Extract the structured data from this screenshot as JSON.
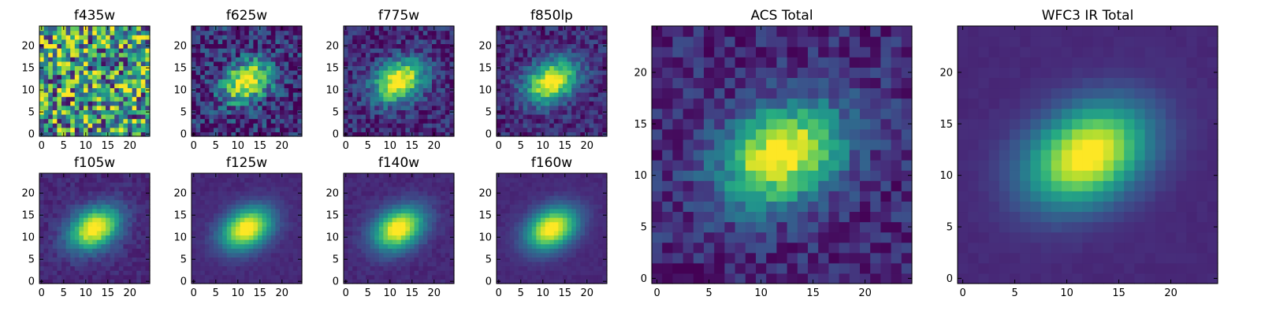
{
  "chart_data": [
    {
      "type": "heatmap",
      "title": "f435w",
      "colormap": "viridis",
      "xlim": [
        0,
        24
      ],
      "ylim": [
        0,
        24
      ],
      "x_ticks": [
        "0",
        "5",
        "10",
        "15",
        "20"
      ],
      "y_ticks": [
        "0",
        "5",
        "10",
        "15",
        "20"
      ],
      "source_center": [
        12,
        12
      ],
      "peak_relative_to_noise": 0.0,
      "noise_level": 0.85,
      "noise_seed": 11
    },
    {
      "type": "heatmap",
      "title": "f625w",
      "colormap": "viridis",
      "xlim": [
        0,
        24
      ],
      "ylim": [
        0,
        24
      ],
      "x_ticks": [
        "0",
        "5",
        "10",
        "15",
        "20"
      ],
      "y_ticks": [
        "0",
        "5",
        "10",
        "15",
        "20"
      ],
      "source_center": [
        12,
        12
      ],
      "peak_relative_to_noise": 1.0,
      "noise_level": 0.55,
      "noise_seed": 23
    },
    {
      "type": "heatmap",
      "title": "f775w",
      "colormap": "viridis",
      "xlim": [
        0,
        24
      ],
      "ylim": [
        0,
        24
      ],
      "x_ticks": [
        "0",
        "5",
        "10",
        "15",
        "20"
      ],
      "y_ticks": [
        "0",
        "5",
        "10",
        "15",
        "20"
      ],
      "source_center": [
        12,
        12
      ],
      "peak_relative_to_noise": 1.0,
      "noise_level": 0.35,
      "noise_seed": 37
    },
    {
      "type": "heatmap",
      "title": "f850lp",
      "colormap": "viridis",
      "xlim": [
        0,
        24
      ],
      "ylim": [
        0,
        24
      ],
      "x_ticks": [
        "0",
        "5",
        "10",
        "15",
        "20"
      ],
      "y_ticks": [
        "0",
        "5",
        "10",
        "15",
        "20"
      ],
      "source_center": [
        12,
        12
      ],
      "peak_relative_to_noise": 1.0,
      "noise_level": 0.3,
      "noise_seed": 41
    },
    {
      "type": "heatmap",
      "title": "f105w",
      "colormap": "viridis",
      "xlim": [
        0,
        24
      ],
      "ylim": [
        0,
        24
      ],
      "x_ticks": [
        "0",
        "5",
        "10",
        "15",
        "20"
      ],
      "y_ticks": [
        "0",
        "5",
        "10",
        "15",
        "20"
      ],
      "source_center": [
        12,
        12
      ],
      "peak_relative_to_noise": 1.0,
      "noise_level": 0.12,
      "noise_seed": 53
    },
    {
      "type": "heatmap",
      "title": "f125w",
      "colormap": "viridis",
      "xlim": [
        0,
        24
      ],
      "ylim": [
        0,
        24
      ],
      "x_ticks": [
        "0",
        "5",
        "10",
        "15",
        "20"
      ],
      "y_ticks": [
        "0",
        "5",
        "10",
        "15",
        "20"
      ],
      "source_center": [
        12,
        12
      ],
      "peak_relative_to_noise": 1.0,
      "noise_level": 0.06,
      "noise_seed": 61
    },
    {
      "type": "heatmap",
      "title": "f140w",
      "colormap": "viridis",
      "xlim": [
        0,
        24
      ],
      "ylim": [
        0,
        24
      ],
      "x_ticks": [
        "0",
        "5",
        "10",
        "15",
        "20"
      ],
      "y_ticks": [
        "0",
        "5",
        "10",
        "15",
        "20"
      ],
      "source_center": [
        12,
        12
      ],
      "peak_relative_to_noise": 1.0,
      "noise_level": 0.08,
      "noise_seed": 71
    },
    {
      "type": "heatmap",
      "title": "f160w",
      "colormap": "viridis",
      "xlim": [
        0,
        24
      ],
      "ylim": [
        0,
        24
      ],
      "x_ticks": [
        "0",
        "5",
        "10",
        "15",
        "20"
      ],
      "y_ticks": [
        "0",
        "5",
        "10",
        "15",
        "20"
      ],
      "source_center": [
        12,
        12
      ],
      "peak_relative_to_noise": 1.0,
      "noise_level": 0.05,
      "noise_seed": 83
    },
    {
      "type": "heatmap",
      "title": "ACS Total",
      "colormap": "viridis",
      "xlim": [
        0,
        24
      ],
      "ylim": [
        0,
        24
      ],
      "x_ticks": [
        "0",
        "5",
        "10",
        "15",
        "20"
      ],
      "y_ticks": [
        "0",
        "5",
        "10",
        "15",
        "20"
      ],
      "source_center": [
        12,
        12
      ],
      "peak_relative_to_noise": 1.0,
      "noise_level": 0.28,
      "noise_seed": 97
    },
    {
      "type": "heatmap",
      "title": "WFC3 IR Total",
      "colormap": "viridis",
      "xlim": [
        0,
        24
      ],
      "ylim": [
        0,
        24
      ],
      "x_ticks": [
        "0",
        "5",
        "10",
        "15",
        "20"
      ],
      "y_ticks": [
        "0",
        "5",
        "10",
        "15",
        "20"
      ],
      "source_center": [
        12,
        12
      ],
      "peak_relative_to_noise": 1.0,
      "noise_level": 0.03,
      "noise_seed": 101
    }
  ]
}
